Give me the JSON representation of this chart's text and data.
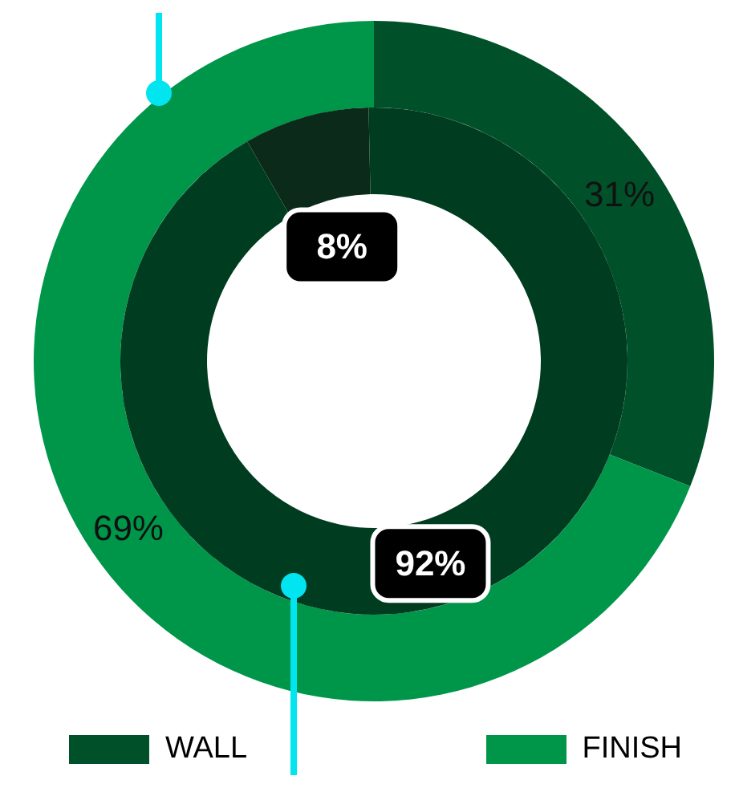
{
  "chart_data": [
    {
      "type": "donut",
      "categories": [
        "WALL",
        "FINISH"
      ],
      "values": [
        31,
        69
      ],
      "colors": [
        "#00512a",
        "#00964a"
      ],
      "value_labels": [
        "31%",
        "69%"
      ],
      "legend": "bottom"
    },
    {
      "type": "donut",
      "categories": [
        null,
        null
      ],
      "values": [
        8,
        92
      ],
      "colors": [
        "#0b2a1a",
        "#003d20"
      ],
      "value_labels": [
        "8%",
        "92%"
      ]
    }
  ]
}
